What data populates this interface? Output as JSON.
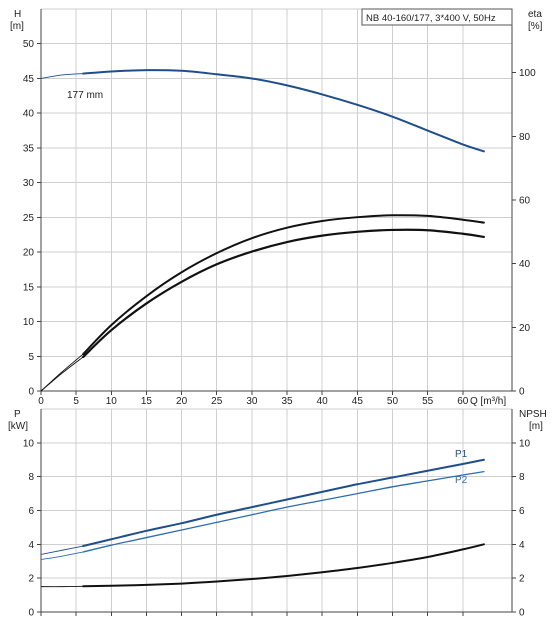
{
  "chart_data": [
    {
      "type": "line",
      "title": "NB 40-160/177, 3*400 V, 50Hz",
      "xlabel": "Q [m³/h]",
      "ylabel_left": "H",
      "ylabel_left_unit": "[m]",
      "ylabel_right": "eta",
      "ylabel_right_unit": "[%]",
      "xlim": [
        0,
        67
      ],
      "ylim_left": [
        0,
        55
      ],
      "ylim_right": [
        0,
        120
      ],
      "x_ticks": [
        0,
        5,
        10,
        15,
        20,
        25,
        30,
        35,
        40,
        45,
        50,
        55,
        60
      ],
      "y_left_ticks": [
        0,
        5,
        10,
        15,
        20,
        25,
        30,
        35,
        40,
        45,
        50
      ],
      "y_right_ticks": [
        0,
        20,
        40,
        60,
        80,
        100
      ],
      "grid": true,
      "series": [
        {
          "name": "177 mm",
          "axis": "left",
          "color": "#1f4e8c",
          "x": [
            6,
            10,
            15,
            20,
            25,
            30,
            35,
            40,
            45,
            50,
            55,
            60,
            63
          ],
          "y": [
            45.7,
            46.0,
            46.2,
            46.1,
            45.6,
            45.0,
            44.0,
            42.7,
            41.2,
            39.5,
            37.5,
            35.5,
            34.5
          ],
          "dashed_extension": {
            "x": [
              0,
              3,
              6
            ],
            "y": [
              45.0,
              45.5,
              45.7
            ]
          }
        },
        {
          "axis": "right",
          "color": "#111111",
          "x": [
            6,
            10,
            15,
            20,
            25,
            30,
            35,
            40,
            45,
            50,
            55,
            60,
            63
          ],
          "y": [
            11.6,
            20.7,
            29.8,
            37.3,
            43.3,
            48.0,
            51.3,
            53.4,
            54.6,
            55.2,
            55.0,
            53.8,
            52.9
          ],
          "dashed_extension": {
            "x": [
              0,
              3,
              6
            ],
            "y": [
              0,
              6.0,
              11.6
            ]
          }
        },
        {
          "axis": "right",
          "color": "#111111",
          "x": [
            6,
            10,
            15,
            20,
            25,
            30,
            35,
            40,
            45,
            50,
            55,
            60,
            63
          ],
          "y": [
            10.7,
            19.1,
            27.5,
            34.3,
            39.8,
            43.8,
            46.8,
            48.8,
            50.0,
            50.6,
            50.5,
            49.4,
            48.4
          ],
          "dashed_extension": {
            "x": [
              0,
              3,
              6
            ],
            "y": [
              0,
              5.6,
              10.7
            ]
          }
        }
      ]
    },
    {
      "type": "line",
      "xlabel": "",
      "ylabel_left": "P",
      "ylabel_left_unit": "[kW]",
      "ylabel_right": "NPSH",
      "ylabel_right_unit": "[m]",
      "xlim": [
        0,
        67
      ],
      "ylim_left": [
        0,
        12
      ],
      "ylim_right": [
        0,
        12
      ],
      "y_left_ticks": [
        0,
        2,
        4,
        6,
        8,
        10
      ],
      "y_right_ticks": [
        0,
        2,
        4,
        6,
        8,
        10
      ],
      "grid": true,
      "series": [
        {
          "name": "P1",
          "axis": "left",
          "color": "#1f4e8c",
          "x": [
            6,
            10,
            15,
            20,
            25,
            30,
            35,
            40,
            45,
            50,
            55,
            60,
            63
          ],
          "y": [
            3.9,
            4.3,
            4.8,
            5.25,
            5.75,
            6.2,
            6.65,
            7.1,
            7.55,
            7.95,
            8.35,
            8.75,
            9.0
          ],
          "dashed_extension": {
            "x": [
              0,
              3,
              6
            ],
            "y": [
              3.4,
              3.65,
              3.9
            ]
          }
        },
        {
          "name": "P2",
          "axis": "left",
          "color": "#2d6cb5",
          "x": [
            6,
            10,
            15,
            20,
            25,
            30,
            35,
            40,
            45,
            50,
            55,
            60,
            63
          ],
          "y": [
            3.55,
            3.95,
            4.4,
            4.85,
            5.3,
            5.75,
            6.2,
            6.6,
            7.0,
            7.4,
            7.75,
            8.1,
            8.3
          ],
          "dashed_extension": {
            "x": [
              0,
              3,
              6
            ],
            "y": [
              3.1,
              3.3,
              3.55
            ]
          }
        },
        {
          "axis": "right",
          "color": "#111111",
          "x": [
            6,
            10,
            15,
            20,
            25,
            30,
            35,
            40,
            45,
            50,
            55,
            60,
            63
          ],
          "y": [
            1.52,
            1.55,
            1.6,
            1.68,
            1.8,
            1.95,
            2.13,
            2.35,
            2.6,
            2.9,
            3.25,
            3.7,
            4.0
          ],
          "dashed_extension": {
            "x": [
              0,
              3,
              6
            ],
            "y": [
              1.5,
              1.5,
              1.52
            ]
          }
        }
      ]
    }
  ]
}
